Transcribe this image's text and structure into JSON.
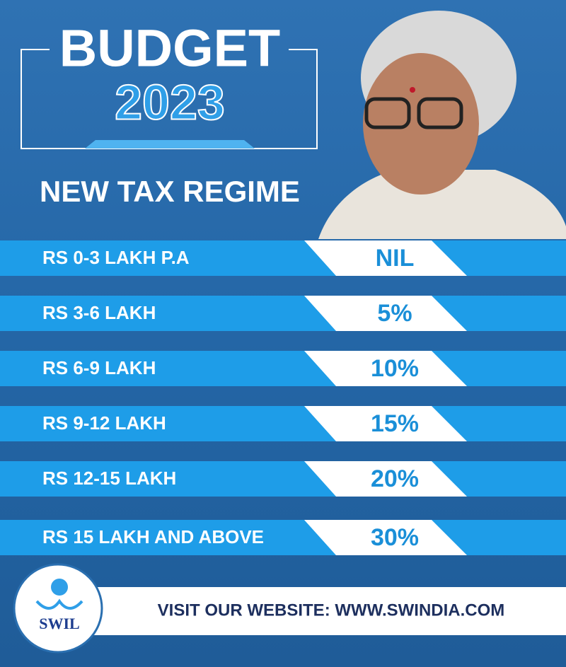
{
  "header": {
    "title": "BUDGET",
    "year": "2023",
    "subtitle": "NEW TAX REGIME"
  },
  "table": {
    "rows": [
      [
        "RS 0-3 LAKH P.A",
        "NIL"
      ],
      [
        "RS 3-6 LAKH",
        "5%"
      ],
      [
        "RS 6-9 LAKH",
        "10%"
      ],
      [
        "RS 9-12 LAKH",
        "15%"
      ],
      [
        "RS 12-15 LAKH",
        "20%"
      ],
      [
        "RS 15 LAKH AND ABOVE",
        "30%"
      ]
    ]
  },
  "footer": {
    "logo": "SWIL",
    "text": "VISIT OUR WEBSITE: WWW.SWINDIA.COM"
  }
}
